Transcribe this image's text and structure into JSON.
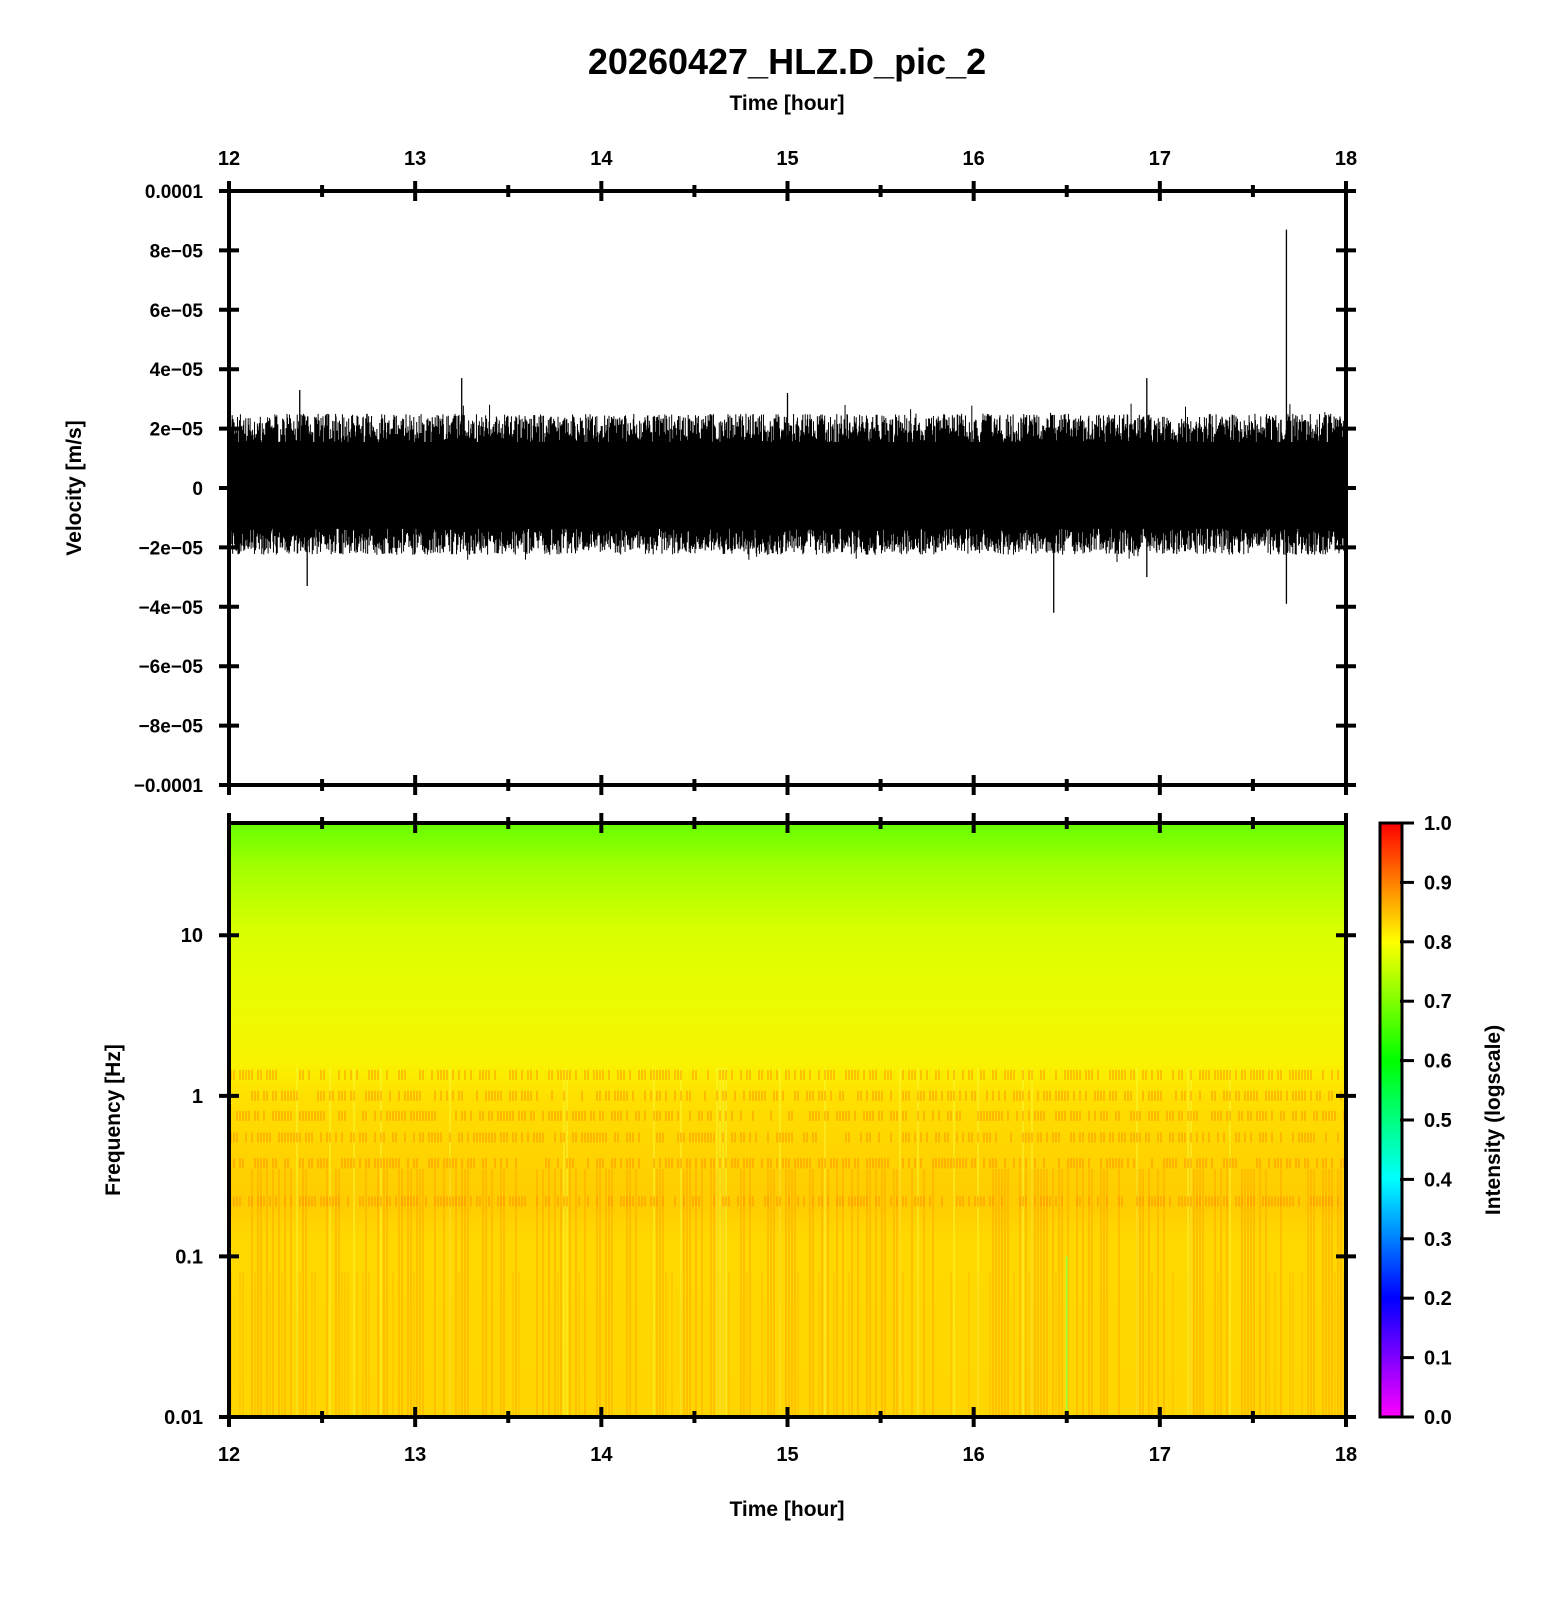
{
  "chart_data": [
    {
      "type": "line",
      "title": "20260427_HLZ.D_pic_2",
      "xlabel": "Time [hour]",
      "ylabel": "Velocity [m/s]",
      "xlim": [
        12,
        18
      ],
      "ylim": [
        -0.0001,
        0.0001
      ],
      "x_ticks": [
        "12",
        "13",
        "14",
        "15",
        "16",
        "17",
        "18"
      ],
      "y_ticks": [
        "0.0001",
        "8e−05",
        "6e−05",
        "4e−05",
        "2e−05",
        "0",
        "−2e−05",
        "−4e−05",
        "−6e−05",
        "−8e−05",
        "−0.0001"
      ],
      "x_axis_position": "top",
      "series_color": "#000000",
      "envelope": {
        "typical_amplitude": 2.5e-05,
        "peaks": [
          {
            "x": 12.38,
            "y": 3.3e-05
          },
          {
            "x": 12.42,
            "y": -3.3e-05
          },
          {
            "x": 13.25,
            "y": 3.7e-05
          },
          {
            "x": 15.0,
            "y": 3.2e-05
          },
          {
            "x": 16.43,
            "y": -4.2e-05
          },
          {
            "x": 16.93,
            "y": 3.7e-05
          },
          {
            "x": 16.93,
            "y": -3e-05
          },
          {
            "x": 17.68,
            "y": 8.7e-05
          },
          {
            "x": 17.68,
            "y": -3.9e-05
          }
        ]
      }
    },
    {
      "type": "heatmap",
      "xlabel": "Time [hour]",
      "ylabel": "Frequency [Hz]",
      "xlim": [
        12,
        18
      ],
      "ylim": [
        0.01,
        50
      ],
      "y_scale": "log",
      "x_ticks": [
        "12",
        "13",
        "14",
        "15",
        "16",
        "17",
        "18"
      ],
      "y_ticks": [
        "10",
        "1",
        "0.1",
        "0.01"
      ],
      "colorbar": {
        "label": "Intensity (logscale)",
        "range": [
          0.0,
          1.0
        ],
        "ticks": [
          "1.0",
          "0.9",
          "0.8",
          "0.7",
          "0.6",
          "0.5",
          "0.4",
          "0.3",
          "0.2",
          "0.1",
          "0.0"
        ],
        "colors": [
          "#ff00ff",
          "#0000ff",
          "#00ffff",
          "#00ff00",
          "#ffff00",
          "#ff0000"
        ]
      },
      "intensity_by_frequency": [
        {
          "freq": 50,
          "intensity": 0.63
        },
        {
          "freq": 20,
          "intensity": 0.7
        },
        {
          "freq": 10,
          "intensity": 0.74
        },
        {
          "freq": 3,
          "intensity": 0.78
        },
        {
          "freq": 1,
          "intensity": 0.83
        },
        {
          "freq": 0.3,
          "intensity": 0.86
        },
        {
          "freq": 0.1,
          "intensity": 0.82
        },
        {
          "freq": 0.01,
          "intensity": 0.82
        }
      ]
    }
  ]
}
